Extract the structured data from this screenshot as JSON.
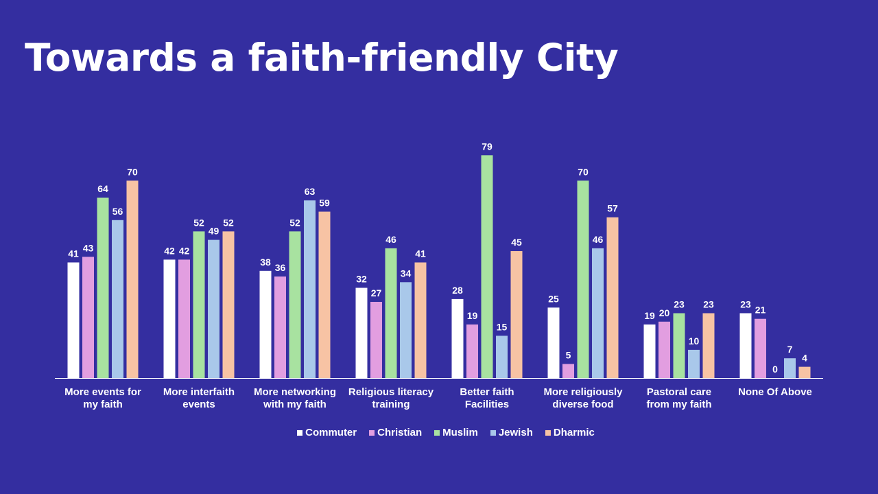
{
  "title": "Towards a faith-friendly City",
  "chart_data": {
    "type": "bar",
    "title": "Towards a faith-friendly City",
    "xlabel": "",
    "ylabel": "",
    "ylim": [
      0,
      80
    ],
    "grid": false,
    "legend_position": "bottom",
    "categories": [
      [
        "More events for",
        "my faith"
      ],
      [
        "More interfaith",
        "events"
      ],
      [
        "More networking",
        "with my faith"
      ],
      [
        "Religious literacy",
        "training"
      ],
      [
        "Better faith",
        "Facilities"
      ],
      [
        "More religiously",
        "diverse food"
      ],
      [
        "Pastoral care",
        "from my faith"
      ],
      [
        "None Of Above"
      ]
    ],
    "series": [
      {
        "name": "Commuter",
        "color": "#ffffff",
        "values": [
          41,
          42,
          38,
          32,
          28,
          25,
          19,
          23
        ]
      },
      {
        "name": "Christian",
        "color": "#e29ee0",
        "values": [
          43,
          42,
          36,
          27,
          19,
          5,
          20,
          21
        ]
      },
      {
        "name": "Muslim",
        "color": "#a8e2a0",
        "values": [
          64,
          52,
          52,
          46,
          79,
          70,
          23,
          0
        ]
      },
      {
        "name": "Jewish",
        "color": "#a9c8ea",
        "values": [
          56,
          49,
          63,
          34,
          15,
          46,
          10,
          7
        ]
      },
      {
        "name": "Dharmic",
        "color": "#f7c3a4",
        "values": [
          70,
          52,
          59,
          41,
          45,
          57,
          23,
          4
        ]
      }
    ]
  }
}
